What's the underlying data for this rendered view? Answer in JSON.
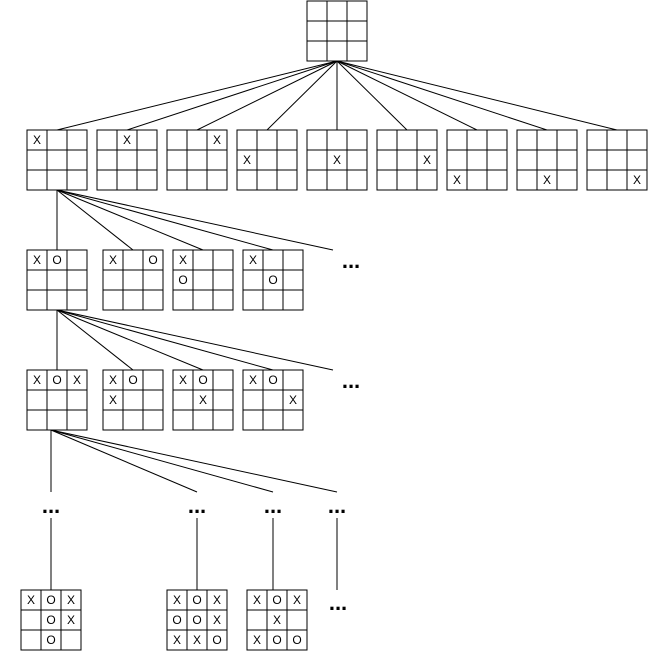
{
  "diagram": {
    "type": "game-tree",
    "ellipsis_text": "...",
    "root": [
      "",
      "",
      "",
      "",
      "",
      "",
      "",
      "",
      ""
    ],
    "level1": [
      [
        "X",
        "",
        "",
        "",
        "",
        "",
        "",
        "",
        ""
      ],
      [
        "",
        "X",
        "",
        "",
        "",
        "",
        "",
        "",
        ""
      ],
      [
        "",
        "",
        "X",
        "",
        "",
        "",
        "",
        "",
        ""
      ],
      [
        "",
        "",
        "",
        "X",
        "",
        "",
        "",
        "",
        ""
      ],
      [
        "",
        "",
        "",
        "",
        "X",
        "",
        "",
        "",
        ""
      ],
      [
        "",
        "",
        "",
        "",
        "",
        "X",
        "",
        "",
        ""
      ],
      [
        "",
        "",
        "",
        "",
        "",
        "",
        "X",
        "",
        ""
      ],
      [
        "",
        "",
        "",
        "",
        "",
        "",
        "",
        "X",
        ""
      ],
      [
        "",
        "",
        "",
        "",
        "",
        "",
        "",
        "",
        "X"
      ]
    ],
    "level2": [
      [
        "X",
        "O",
        "",
        "",
        "",
        "",
        "",
        "",
        ""
      ],
      [
        "X",
        "",
        "O",
        "",
        "",
        "",
        "",
        "",
        ""
      ],
      [
        "X",
        "",
        "",
        "O",
        "",
        "",
        "",
        "",
        ""
      ],
      [
        "X",
        "",
        "",
        "",
        "O",
        "",
        "",
        "",
        ""
      ]
    ],
    "level3": [
      [
        "X",
        "O",
        "X",
        "",
        "",
        "",
        "",
        "",
        ""
      ],
      [
        "X",
        "O",
        "",
        "X",
        "",
        "",
        "",
        "",
        ""
      ],
      [
        "X",
        "O",
        "",
        "",
        "X",
        "",
        "",
        "",
        ""
      ],
      [
        "X",
        "O",
        "",
        "",
        "",
        "X",
        "",
        "",
        ""
      ]
    ],
    "terminal": [
      [
        "X",
        "O",
        "X",
        "",
        "O",
        "X",
        "",
        "O",
        ""
      ],
      [
        "X",
        "O",
        "X",
        "O",
        "O",
        "X",
        "X",
        "X",
        "O"
      ],
      [
        "X",
        "O",
        "X",
        "",
        "X",
        "",
        "X",
        "O",
        "O"
      ]
    ]
  }
}
